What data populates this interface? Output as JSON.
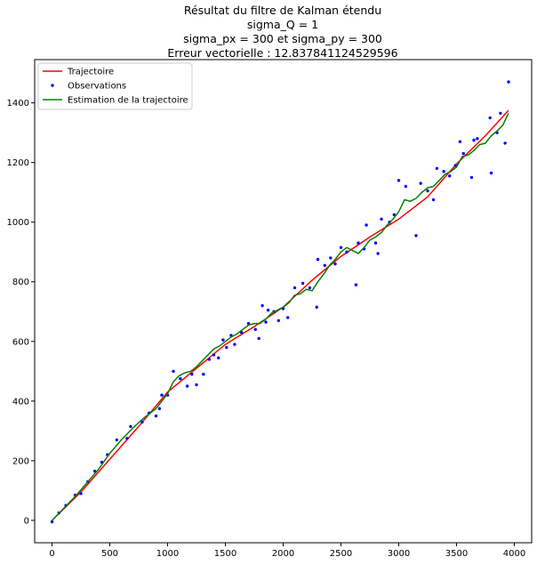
{
  "title_lines": [
    "Résultat du filtre de Kalman étendu",
    "sigma_Q = 1",
    "sigma_px = 300 et sigma_py = 300",
    "Erreur vectorielle : 12.837841124529596"
  ],
  "chart_data": {
    "type": "line",
    "xlim": [
      -150,
      4150
    ],
    "ylim": [
      -75,
      1545
    ],
    "x_ticks": [
      0,
      500,
      1000,
      1500,
      2000,
      2500,
      3000,
      3500,
      4000
    ],
    "y_ticks": [
      0,
      200,
      400,
      600,
      800,
      1000,
      1200,
      1400
    ],
    "grid": false,
    "legend_position": "top-left",
    "series": [
      {
        "name": "Trajectoire",
        "kind": "line",
        "color": "#ff0000",
        "points": [
          [
            0,
            0
          ],
          [
            250,
            95
          ],
          [
            500,
            205
          ],
          [
            750,
            315
          ],
          [
            1000,
            430
          ],
          [
            1250,
            510
          ],
          [
            1500,
            590
          ],
          [
            1750,
            650
          ],
          [
            2000,
            715
          ],
          [
            2250,
            805
          ],
          [
            2500,
            885
          ],
          [
            2750,
            950
          ],
          [
            3000,
            1010
          ],
          [
            3250,
            1085
          ],
          [
            3500,
            1195
          ],
          [
            3750,
            1290
          ],
          [
            3950,
            1375
          ]
        ]
      },
      {
        "name": "Observations",
        "kind": "scatter",
        "color": "#0000ff",
        "points": [
          [
            0,
            -5
          ],
          [
            60,
            25
          ],
          [
            120,
            50
          ],
          [
            200,
            85
          ],
          [
            250,
            90
          ],
          [
            310,
            130
          ],
          [
            370,
            165
          ],
          [
            430,
            195
          ],
          [
            480,
            220
          ],
          [
            560,
            270
          ],
          [
            650,
            275
          ],
          [
            680,
            315
          ],
          [
            780,
            330
          ],
          [
            840,
            360
          ],
          [
            900,
            350
          ],
          [
            930,
            375
          ],
          [
            950,
            420
          ],
          [
            1000,
            420
          ],
          [
            1050,
            500
          ],
          [
            1110,
            475
          ],
          [
            1170,
            450
          ],
          [
            1210,
            490
          ],
          [
            1250,
            455
          ],
          [
            1310,
            490
          ],
          [
            1360,
            540
          ],
          [
            1400,
            555
          ],
          [
            1440,
            545
          ],
          [
            1480,
            605
          ],
          [
            1510,
            580
          ],
          [
            1550,
            620
          ],
          [
            1580,
            590
          ],
          [
            1640,
            630
          ],
          [
            1700,
            660
          ],
          [
            1760,
            640
          ],
          [
            1790,
            610
          ],
          [
            1820,
            720
          ],
          [
            1850,
            665
          ],
          [
            1870,
            705
          ],
          [
            1920,
            700
          ],
          [
            1960,
            670
          ],
          [
            2000,
            710
          ],
          [
            2040,
            680
          ],
          [
            2100,
            780
          ],
          [
            2170,
            795
          ],
          [
            2230,
            780
          ],
          [
            2290,
            715
          ],
          [
            2300,
            875
          ],
          [
            2360,
            855
          ],
          [
            2410,
            880
          ],
          [
            2450,
            860
          ],
          [
            2500,
            915
          ],
          [
            2550,
            900
          ],
          [
            2630,
            790
          ],
          [
            2650,
            930
          ],
          [
            2700,
            910
          ],
          [
            2720,
            990
          ],
          [
            2800,
            930
          ],
          [
            2820,
            895
          ],
          [
            2850,
            1010
          ],
          [
            2920,
            1000
          ],
          [
            2960,
            1025
          ],
          [
            3000,
            1140
          ],
          [
            3060,
            1120
          ],
          [
            3150,
            955
          ],
          [
            3190,
            1130
          ],
          [
            3250,
            1105
          ],
          [
            3300,
            1075
          ],
          [
            3330,
            1180
          ],
          [
            3390,
            1170
          ],
          [
            3440,
            1155
          ],
          [
            3490,
            1190
          ],
          [
            3530,
            1270
          ],
          [
            3560,
            1230
          ],
          [
            3630,
            1150
          ],
          [
            3650,
            1275
          ],
          [
            3680,
            1280
          ],
          [
            3790,
            1350
          ],
          [
            3800,
            1165
          ],
          [
            3850,
            1300
          ],
          [
            3880,
            1365
          ],
          [
            3920,
            1265
          ],
          [
            3950,
            1470
          ]
        ]
      },
      {
        "name": "Estimation de la trajectoire",
        "kind": "line",
        "color": "#008000",
        "points": [
          [
            0,
            0
          ],
          [
            100,
            40
          ],
          [
            200,
            80
          ],
          [
            300,
            125
          ],
          [
            400,
            170
          ],
          [
            500,
            225
          ],
          [
            600,
            270
          ],
          [
            700,
            310
          ],
          [
            800,
            345
          ],
          [
            900,
            375
          ],
          [
            950,
            400
          ],
          [
            1000,
            425
          ],
          [
            1050,
            465
          ],
          [
            1100,
            485
          ],
          [
            1150,
            495
          ],
          [
            1200,
            500
          ],
          [
            1250,
            515
          ],
          [
            1300,
            535
          ],
          [
            1350,
            555
          ],
          [
            1400,
            575
          ],
          [
            1450,
            585
          ],
          [
            1500,
            600
          ],
          [
            1550,
            615
          ],
          [
            1600,
            625
          ],
          [
            1650,
            640
          ],
          [
            1700,
            655
          ],
          [
            1750,
            660
          ],
          [
            1800,
            660
          ],
          [
            1850,
            675
          ],
          [
            1900,
            695
          ],
          [
            1950,
            705
          ],
          [
            2000,
            715
          ],
          [
            2050,
            730
          ],
          [
            2100,
            755
          ],
          [
            2150,
            760
          ],
          [
            2200,
            775
          ],
          [
            2250,
            770
          ],
          [
            2300,
            800
          ],
          [
            2350,
            825
          ],
          [
            2400,
            855
          ],
          [
            2450,
            875
          ],
          [
            2500,
            900
          ],
          [
            2550,
            915
          ],
          [
            2600,
            905
          ],
          [
            2650,
            895
          ],
          [
            2700,
            915
          ],
          [
            2750,
            940
          ],
          [
            2800,
            950
          ],
          [
            2850,
            965
          ],
          [
            2900,
            990
          ],
          [
            2950,
            1010
          ],
          [
            3000,
            1035
          ],
          [
            3050,
            1075
          ],
          [
            3100,
            1070
          ],
          [
            3150,
            1080
          ],
          [
            3200,
            1100
          ],
          [
            3250,
            1115
          ],
          [
            3300,
            1120
          ],
          [
            3350,
            1140
          ],
          [
            3400,
            1160
          ],
          [
            3450,
            1170
          ],
          [
            3500,
            1185
          ],
          [
            3550,
            1220
          ],
          [
            3600,
            1225
          ],
          [
            3650,
            1240
          ],
          [
            3700,
            1260
          ],
          [
            3750,
            1265
          ],
          [
            3800,
            1290
          ],
          [
            3850,
            1305
          ],
          [
            3900,
            1325
          ],
          [
            3950,
            1365
          ]
        ]
      }
    ]
  }
}
